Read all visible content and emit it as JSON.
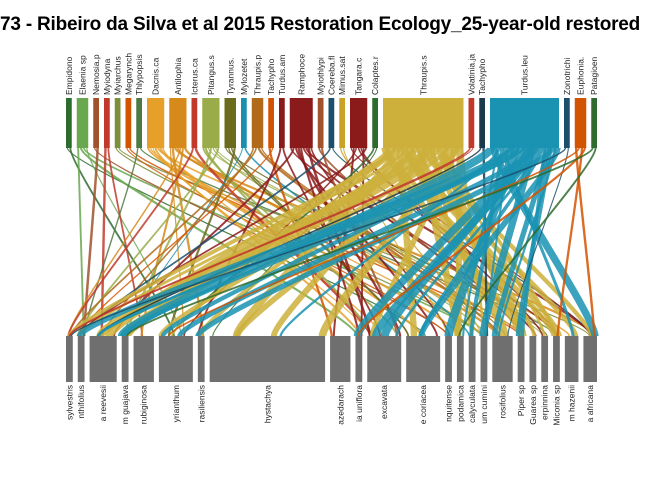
{
  "title": "73 - Ribeiro da Silva et al 2015 Restoration Ecology_25-year-old restored",
  "colors": {
    "lower_box": "#6f6f6f",
    "palette": [
      "#2e6b2e",
      "#6aa84f",
      "#7b8f3c",
      "#a0522d",
      "#c0392b",
      "#d35400",
      "#e6a02a",
      "#c9a227",
      "#8db04a",
      "#6b6b1e",
      "#1a8fb0",
      "#1b4f6b",
      "#8b1a1a",
      "#b5651d",
      "#4f7942"
    ]
  },
  "chart_data": {
    "type": "bipartite",
    "higher_species": [
      {
        "name": "Empidono",
        "weight": 1,
        "color": "#2e6b2e"
      },
      {
        "name": "Elaenia sp",
        "weight": 2,
        "color": "#6aa84f"
      },
      {
        "name": "Nemosia.p",
        "weight": 1,
        "color": "#a0522d"
      },
      {
        "name": "Myiodyna",
        "weight": 1,
        "color": "#c0392b"
      },
      {
        "name": "Myiarchus",
        "weight": 1,
        "color": "#7b8f3c"
      },
      {
        "name": "Megarynch",
        "weight": 1,
        "color": "#d35400"
      },
      {
        "name": "Thlypopsis",
        "weight": 1,
        "color": "#4f7942"
      },
      {
        "name": "Dacnis.ca",
        "weight": 3,
        "color": "#e6a02a"
      },
      {
        "name": "Antilophia",
        "weight": 3,
        "color": "#d68a1a"
      },
      {
        "name": "Icterus.ca",
        "weight": 1,
        "color": "#c0392b"
      },
      {
        "name": "Pitangus.s",
        "weight": 3,
        "color": "#9aab4a"
      },
      {
        "name": "Tyrannus.",
        "weight": 2,
        "color": "#6b6b1e"
      },
      {
        "name": "Mylozetet",
        "weight": 1,
        "color": "#1a8fb0"
      },
      {
        "name": "Thraupis.p",
        "weight": 2,
        "color": "#b06a1a"
      },
      {
        "name": "Tachypho",
        "weight": 1,
        "color": "#d35400"
      },
      {
        "name": "Turdus.am",
        "weight": 1,
        "color": "#8b1a1a"
      },
      {
        "name": "Ramphoce",
        "weight": 4,
        "color": "#8b1a1a"
      },
      {
        "name": "Myiothlypi",
        "weight": 1,
        "color": "#a0522d"
      },
      {
        "name": "Coereba.fl",
        "weight": 1,
        "color": "#1b4f6b"
      },
      {
        "name": "Mimus.sat",
        "weight": 1,
        "color": "#c9a227"
      },
      {
        "name": "Tangara.c",
        "weight": 3,
        "color": "#8b1a1a"
      },
      {
        "name": "Colaptes.r",
        "weight": 1,
        "color": "#2e6b2e"
      },
      {
        "name": "Thraupis.s",
        "weight": 14,
        "color": "#cdb03c"
      },
      {
        "name": "Volatinia.ja",
        "weight": 1,
        "color": "#c0392b"
      },
      {
        "name": "Tachypho",
        "weight": 1,
        "color": "#1b3a4b"
      },
      {
        "name": "Turdus.leu",
        "weight": 12,
        "color": "#1a93b3"
      },
      {
        "name": "Zonotrichi",
        "weight": 1,
        "color": "#1b4f6b"
      },
      {
        "name": "Euphonia.",
        "weight": 2,
        "color": "#d35400"
      },
      {
        "name": "Patagioen",
        "weight": 1,
        "color": "#2e6b2e"
      }
    ],
    "lower_species": [
      {
        "name": "sylvestris",
        "weight": 1
      },
      {
        "name": "nthifolius",
        "weight": 1
      },
      {
        "name": "a reevesii",
        "weight": 4
      },
      {
        "name": "m guajava",
        "weight": 1
      },
      {
        "name": "rubiginosa",
        "weight": 3
      },
      {
        "name": "yrianthum",
        "weight": 5
      },
      {
        "name": "rasiliensis",
        "weight": 1
      },
      {
        "name": "hystachya",
        "weight": 17
      },
      {
        "name": "azedarach",
        "weight": 3
      },
      {
        "name": "ia uniflora",
        "weight": 1
      },
      {
        "name": "excavata",
        "weight": 5
      },
      {
        "name": "e coriacea",
        "weight": 5
      },
      {
        "name": "nquitense",
        "weight": 1
      },
      {
        "name": "podamica",
        "weight": 1
      },
      {
        "name": "calyculata",
        "weight": 1
      },
      {
        "name": "um cumini",
        "weight": 1
      },
      {
        "name": "rosifolius",
        "weight": 3
      },
      {
        "name": "Piper sp",
        "weight": 1
      },
      {
        "name": "Guarea sp",
        "weight": 1
      },
      {
        "name": "erpinnina",
        "weight": 1
      },
      {
        "name": "Miconia sp",
        "weight": 1
      },
      {
        "name": "m hazenii",
        "weight": 2
      },
      {
        "name": "a africana",
        "weight": 2
      }
    ]
  }
}
